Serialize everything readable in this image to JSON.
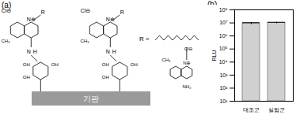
{
  "chart_data": {
    "type": "bar",
    "panel_label": "(b)",
    "categories": [
      "대조군",
      "실험군"
    ],
    "values": [
      9000000,
      10000000
    ],
    "errors": [
      1500000,
      1200000
    ],
    "color": "#d0d0d0",
    "y_label": "RLU",
    "log": "y",
    "ylim": [
      10,
      100000000
    ],
    "yticks": [
      {
        "value": 10,
        "label": "10¹"
      },
      {
        "value": 100,
        "label": "10²"
      },
      {
        "value": 1000,
        "label": "10³"
      },
      {
        "value": 10000,
        "label": "10⁴"
      },
      {
        "value": 100000,
        "label": "10⁵"
      },
      {
        "value": 1000000,
        "label": "10⁶"
      },
      {
        "value": 10000000,
        "label": "10⁷"
      },
      {
        "value": 100000000,
        "label": "10⁸"
      }
    ]
  },
  "diagram": {
    "panel_label": "(a)",
    "substrate": "기판",
    "counterion": "Cl⊖",
    "charged_nitrogen": "N⊕",
    "r_group": "R",
    "methyl": "CH₃",
    "amine_nitrogen": "N",
    "hydrogen": "H",
    "hydroxyl": "OH",
    "r_definition": "R =",
    "amino": "NH₂"
  }
}
